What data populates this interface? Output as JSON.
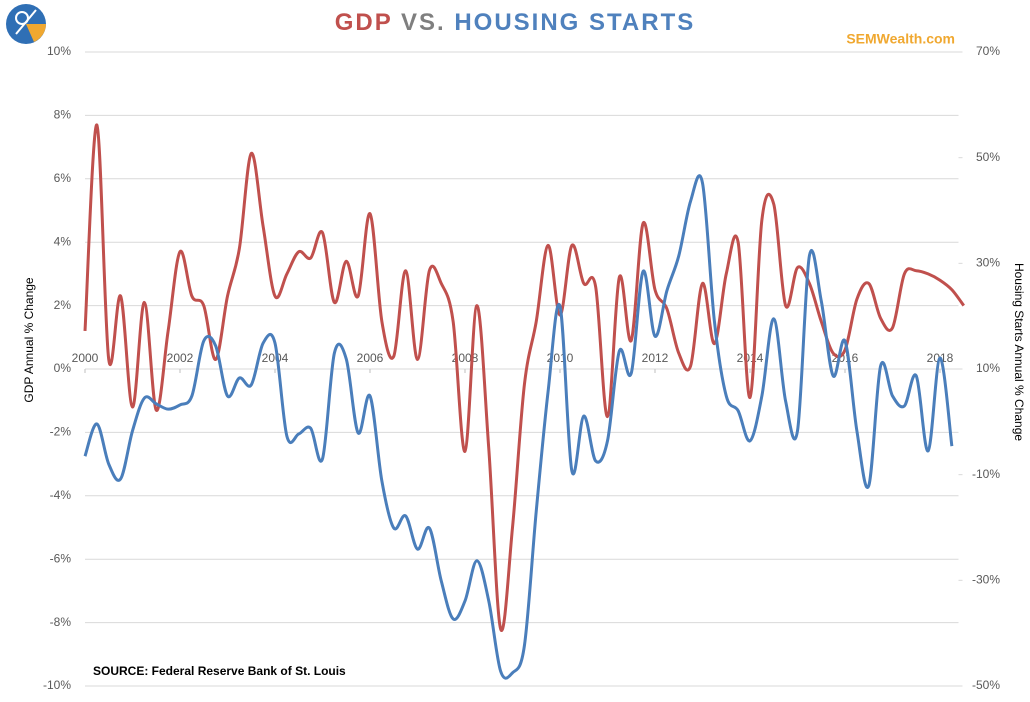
{
  "chart_data": {
    "type": "line",
    "title_parts": [
      {
        "text": "GDP",
        "color": "#c0504d"
      },
      {
        "text": "VS.",
        "color": "#7f7f7f"
      },
      {
        "text": "HOUSING STARTS",
        "color": "#4f81bd"
      }
    ],
    "brand": "SEMWealth.com",
    "source": "SOURCE:  Federal Reserve Bank of St. Louis",
    "ylabel": "GDP Annual % Change",
    "y2label": "Housing Starts Annual % Change",
    "x": [
      2000,
      2000.25,
      2000.5,
      2000.75,
      2001,
      2001.25,
      2001.5,
      2001.75,
      2002,
      2002.25,
      2002.5,
      2002.75,
      2003,
      2003.25,
      2003.5,
      2003.75,
      2004,
      2004.25,
      2004.5,
      2004.75,
      2005,
      2005.25,
      2005.5,
      2005.75,
      2006,
      2006.25,
      2006.5,
      2006.75,
      2007,
      2007.25,
      2007.5,
      2007.75,
      2008,
      2008.25,
      2008.5,
      2008.75,
      2009,
      2009.25,
      2009.5,
      2009.75,
      2010,
      2010.25,
      2010.5,
      2010.75,
      2011,
      2011.25,
      2011.5,
      2011.75,
      2012,
      2012.25,
      2012.5,
      2012.75,
      2013,
      2013.25,
      2013.5,
      2013.75,
      2014,
      2014.25,
      2014.5,
      2014.75,
      2015,
      2015.25,
      2015.5,
      2015.75,
      2016,
      2016.25,
      2016.5,
      2016.75,
      2017,
      2017.25,
      2017.5,
      2017.75,
      2018,
      2018.25,
      2018.5
    ],
    "series": [
      {
        "name": "GDP",
        "color": "#c0504d",
        "axis": "y",
        "values": [
          1.2,
          7.7,
          0.3,
          2.3,
          -1.2,
          2.1,
          -1.3,
          1.2,
          3.7,
          2.3,
          2.0,
          0.3,
          2.3,
          3.8,
          6.8,
          4.5,
          2.3,
          3.0,
          3.7,
          3.5,
          4.3,
          2.1,
          3.4,
          2.3,
          4.9,
          1.5,
          0.4,
          3.1,
          0.3,
          3.1,
          2.7,
          1.5,
          -2.6,
          2.0,
          -2.5,
          -8.2,
          -5.0,
          -0.5,
          1.5,
          3.9,
          1.7,
          3.9,
          2.7,
          2.6,
          -1.5,
          2.9,
          0.9,
          4.6,
          2.5,
          1.9,
          0.5,
          0.1,
          2.7,
          0.8,
          3.0,
          4.0,
          -0.9,
          4.7,
          5.2,
          2.0,
          3.2,
          2.7,
          1.5,
          0.5,
          0.6,
          2.2,
          2.7,
          1.6,
          1.3,
          3.0,
          3.1,
          3.0,
          2.8,
          2.5,
          2.0
        ]
      },
      {
        "name": "Housing Starts",
        "color": "#4a7ebb",
        "axis": "y2",
        "values": [
          -6.5,
          -0.4,
          -8,
          -10.8,
          -1.7,
          4.5,
          3.4,
          2.4,
          3.2,
          4.9,
          15.3,
          14.4,
          4.9,
          8.3,
          7,
          14.9,
          14.9,
          -2.7,
          -2.3,
          -1.2,
          -7,
          13,
          11.9,
          -2.1,
          4.9,
          -11.2,
          -20.1,
          -17.8,
          -24.1,
          -20.1,
          -30.1,
          -37.3,
          -33.9,
          -26.3,
          -33.9,
          -47.2,
          -47.5,
          -42.4,
          -16.9,
          5.8,
          21.9,
          -9.3,
          1.1,
          -7.4,
          -3.6,
          13.4,
          9.2,
          28.5,
          16.2,
          24.8,
          31.4,
          41.8,
          45.2,
          19.1,
          4.9,
          2.1,
          -3.6,
          4.9,
          19.5,
          3.9,
          -1.7,
          31.4,
          22.9,
          8.7,
          15.3,
          -1.7,
          -12.1,
          10.6,
          4.9,
          3,
          8.7,
          -5.5,
          12.1,
          -4.6,
          null
        ]
      }
    ],
    "xlim": [
      2000,
      2018.6
    ],
    "xticks": [
      2000,
      2002,
      2004,
      2006,
      2008,
      2010,
      2012,
      2014,
      2016,
      2018
    ],
    "ylim": [
      -10,
      10
    ],
    "yticks": [
      {
        "value": -10,
        "label": "-10%"
      },
      {
        "value": -8,
        "label": "-8%"
      },
      {
        "value": -6,
        "label": "-6%"
      },
      {
        "value": -4,
        "label": "-4%"
      },
      {
        "value": -2,
        "label": "-2%"
      },
      {
        "value": 0,
        "label": "0%"
      },
      {
        "value": 2,
        "label": "2%"
      },
      {
        "value": 4,
        "label": "4%"
      },
      {
        "value": 6,
        "label": "6%"
      },
      {
        "value": 8,
        "label": "8%"
      },
      {
        "value": 10,
        "label": "10%"
      }
    ],
    "y2lim": [
      -50,
      70
    ],
    "y2ticks": [
      {
        "value": -50,
        "label": "-50%"
      },
      {
        "value": -30,
        "label": "-30%"
      },
      {
        "value": -10,
        "label": "-10%"
      },
      {
        "value": 10,
        "label": "10%"
      },
      {
        "value": 30,
        "label": "30%"
      },
      {
        "value": 50,
        "label": "50%"
      },
      {
        "value": 70,
        "label": "70%"
      }
    ],
    "grid": true
  }
}
